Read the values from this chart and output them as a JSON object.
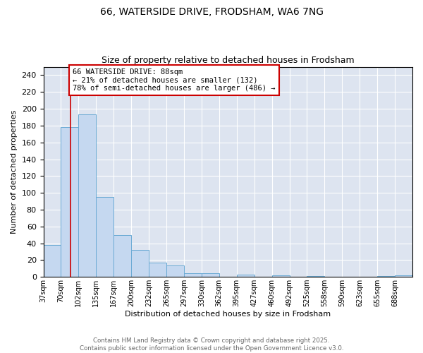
{
  "title1": "66, WATERSIDE DRIVE, FRODSHAM, WA6 7NG",
  "title2": "Size of property relative to detached houses in Frodsham",
  "xlabel": "Distribution of detached houses by size in Frodsham",
  "ylabel": "Number of detached properties",
  "bin_labels": [
    "37sqm",
    "70sqm",
    "102sqm",
    "135sqm",
    "167sqm",
    "200sqm",
    "232sqm",
    "265sqm",
    "297sqm",
    "330sqm",
    "362sqm",
    "395sqm",
    "427sqm",
    "460sqm",
    "492sqm",
    "525sqm",
    "558sqm",
    "590sqm",
    "623sqm",
    "655sqm",
    "688sqm"
  ],
  "bar_heights": [
    38,
    178,
    193,
    95,
    50,
    32,
    17,
    14,
    4,
    4,
    0,
    3,
    0,
    2,
    0,
    1,
    0,
    0,
    0,
    1,
    2
  ],
  "bar_color": "#c5d8f0",
  "bar_edge_color": "#6aaad4",
  "vline_x": 1,
  "vline_color": "#cc0000",
  "ylim": [
    0,
    250
  ],
  "yticks": [
    0,
    20,
    40,
    60,
    80,
    100,
    120,
    140,
    160,
    180,
    200,
    220,
    240
  ],
  "annotation_title": "66 WATERSIDE DRIVE: 88sqm",
  "annotation_line2": "← 21% of detached houses are smaller (132)",
  "annotation_line3": "78% of semi-detached houses are larger (486) →",
  "annotation_box_color": "#ffffff",
  "annotation_border_color": "#cc0000",
  "bg_color": "#dde4f0",
  "footer1": "Contains HM Land Registry data © Crown copyright and database right 2025.",
  "footer2": "Contains public sector information licensed under the Open Government Licence v3.0.",
  "title_fontsize": 10,
  "subtitle_fontsize": 9,
  "grid_color": "#ffffff",
  "tick_label_fontsize": 7,
  "ylabel_fontsize": 8,
  "xlabel_fontsize": 8
}
